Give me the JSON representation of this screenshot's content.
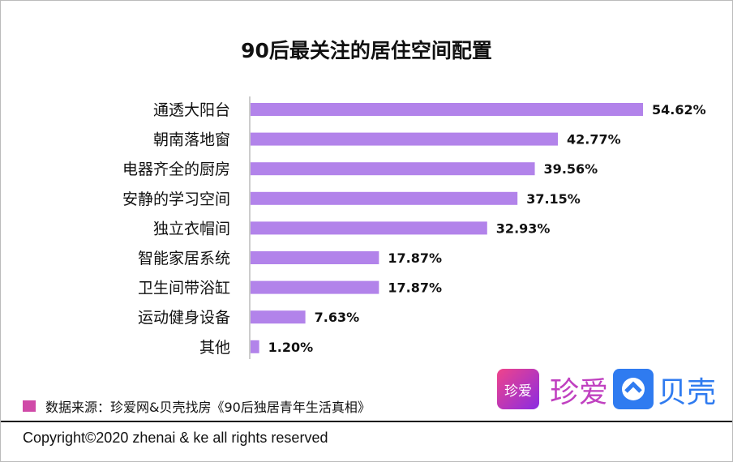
{
  "chart_data": {
    "type": "bar",
    "orientation": "horizontal",
    "title": "90后最关注的居住空间配置",
    "categories": [
      "通透大阳台",
      "朝南落地窗",
      "电器齐全的厨房",
      "安静的学习空间",
      "独立衣帽间",
      "智能家居系统",
      "卫生间带浴缸",
      "运动健身设备",
      "其他"
    ],
    "values": [
      54.62,
      42.77,
      39.56,
      37.15,
      32.93,
      17.87,
      17.87,
      7.63,
      1.2
    ],
    "value_labels": [
      "54.62%",
      "42.77%",
      "39.56%",
      "37.15%",
      "32.93%",
      "17.87%",
      "17.87%",
      "7.63%",
      "1.20%"
    ],
    "unit": "%",
    "bar_color": "#b283ea",
    "grid": false
  },
  "source": {
    "text": "数据来源：珍爱网&贝壳找房《90后独居青年生活真相》",
    "swatch_color": "#d04aa8"
  },
  "logos": {
    "zhenai_icon": "珍爱",
    "zhenai_text": "珍爱",
    "ke_text": "贝壳"
  },
  "footer": {
    "copyright": "Copyright©2020 zhenai & ke all rights reserved"
  }
}
